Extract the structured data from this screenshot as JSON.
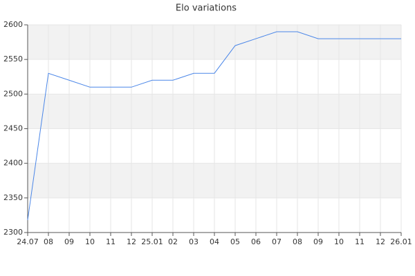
{
  "chart_data": {
    "type": "line",
    "title": "Elo variations",
    "categories": [
      "24.07",
      "08",
      "09",
      "10",
      "11",
      "12",
      "25.01",
      "02",
      "03",
      "04",
      "05",
      "06",
      "07",
      "08",
      "09",
      "10",
      "11",
      "12",
      "26.01"
    ],
    "series": [
      {
        "name": "Elo",
        "color": "#4a86e8",
        "values": [
          2318,
          2530,
          2520,
          2510,
          2510,
          2510,
          2520,
          2520,
          2530,
          2530,
          2570,
          2580,
          2590,
          2590,
          2580,
          2580,
          2580,
          2580,
          2580
        ]
      }
    ],
    "ylim": [
      2300,
      2600
    ],
    "yticks": [
      2300,
      2350,
      2400,
      2450,
      2500,
      2550,
      2600
    ],
    "grid": true
  }
}
